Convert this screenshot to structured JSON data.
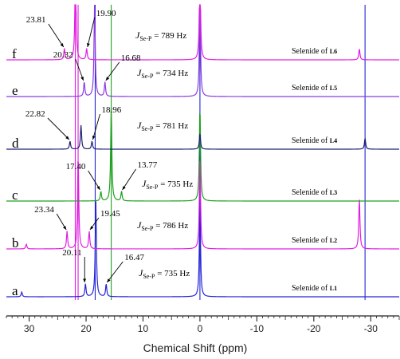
{
  "chart_data": {
    "type": "line",
    "xlabel": "Chemical Shift (ppm)",
    "ylabel": "",
    "x_reversed": true,
    "xlim": [
      34,
      -35
    ],
    "x_ticks": [
      30,
      20,
      10,
      0,
      -10,
      -20,
      -30
    ],
    "x_tick_labels": [
      "30",
      "20",
      "10",
      "0",
      "-10",
      "-20",
      "-30"
    ],
    "grid": false,
    "series": [
      {
        "id": "a",
        "letter": "a",
        "color": "#2424d6",
        "coupling": "735",
        "selenide": "Selenide of ",
        "ligand": "L1",
        "peaks": [
          {
            "x": 31.3,
            "h": 0.15
          },
          {
            "x": 20.11,
            "h": 0.4
          },
          {
            "x": 18.29,
            "h": 3.0
          },
          {
            "x": 16.47,
            "h": 0.4
          },
          {
            "x": 0.0,
            "h": 3.0
          }
        ],
        "labels": [
          {
            "text": "20.11",
            "x": 20.11
          },
          {
            "text": "16.47",
            "x": 16.47
          }
        ]
      },
      {
        "id": "b",
        "letter": "b",
        "color": "#e020e0",
        "coupling": "786",
        "selenide": "Selenide of ",
        "ligand": "L2",
        "peaks": [
          {
            "x": 30.5,
            "h": 0.15
          },
          {
            "x": 23.34,
            "h": 0.55
          },
          {
            "x": 21.39,
            "h": 3.0
          },
          {
            "x": 19.45,
            "h": 0.55
          },
          {
            "x": 0.0,
            "h": 3.0
          },
          {
            "x": -28.0,
            "h": 1.6
          }
        ],
        "labels": [
          {
            "text": "23.34",
            "x": 23.34
          },
          {
            "text": "19.45",
            "x": 19.45
          }
        ]
      },
      {
        "id": "c",
        "letter": "c",
        "color": "#1fa01f",
        "coupling": "735",
        "selenide": "Selenide of ",
        "ligand": "L3",
        "peaks": [
          {
            "x": 17.4,
            "h": 0.3
          },
          {
            "x": 15.58,
            "h": 3.0
          },
          {
            "x": 13.77,
            "h": 0.3
          },
          {
            "x": 0.0,
            "h": 3.0
          }
        ],
        "labels": [
          {
            "text": "17.40",
            "x": 17.4
          },
          {
            "text": "13.77",
            "x": 13.77
          }
        ]
      },
      {
        "id": "d",
        "letter": "d",
        "color": "#1a2070",
        "coupling": "781",
        "selenide": "Selenide of ",
        "ligand": "L4",
        "peaks": [
          {
            "x": 22.82,
            "h": 0.25
          },
          {
            "x": 20.89,
            "h": 0.75
          },
          {
            "x": 18.96,
            "h": 0.25
          },
          {
            "x": 0.0,
            "h": 0.5
          },
          {
            "x": -29.0,
            "h": 0.35
          }
        ],
        "labels": [
          {
            "text": "22.82",
            "x": 22.82
          },
          {
            "text": "18.96",
            "x": 18.96
          }
        ]
      },
      {
        "id": "e",
        "letter": "e",
        "color": "#8a3ae0",
        "coupling": "734",
        "selenide": "Selenide of ",
        "ligand": "L5",
        "peaks": [
          {
            "x": 20.32,
            "h": 0.45
          },
          {
            "x": 18.5,
            "h": 3.0
          },
          {
            "x": 16.68,
            "h": 0.45
          },
          {
            "x": 0.0,
            "h": 3.0
          }
        ],
        "labels": [
          {
            "text": "20.32",
            "x": 20.32
          },
          {
            "text": "16.68",
            "x": 16.68
          }
        ]
      },
      {
        "id": "f",
        "letter": "f",
        "color": "#e020e0",
        "coupling": "789",
        "selenide": "Selenide of ",
        "ligand": "L6",
        "peaks": [
          {
            "x": 23.81,
            "h": 0.35
          },
          {
            "x": 21.86,
            "h": 3.0
          },
          {
            "x": 19.9,
            "h": 0.35
          },
          {
            "x": 0.0,
            "h": 3.0
          },
          {
            "x": -28.0,
            "h": 0.35
          }
        ],
        "labels": [
          {
            "text": "23.81",
            "x": 23.81
          },
          {
            "text": "19.90",
            "x": 19.9
          }
        ]
      }
    ],
    "coupling_prefix": "J",
    "coupling_subscript": "Se-P",
    "coupling_unit": " Hz",
    "overflow_lines": [
      {
        "x": 21.9,
        "color": "#e020e0"
      },
      {
        "x": 21.4,
        "color": "#e020e0"
      },
      {
        "x": 18.4,
        "color": "#2424d6"
      },
      {
        "x": 15.58,
        "color": "#1fa01f"
      },
      {
        "x": 0.0,
        "color": "#2424d6"
      },
      {
        "x": -29.0,
        "color": "#2424d6"
      }
    ]
  }
}
